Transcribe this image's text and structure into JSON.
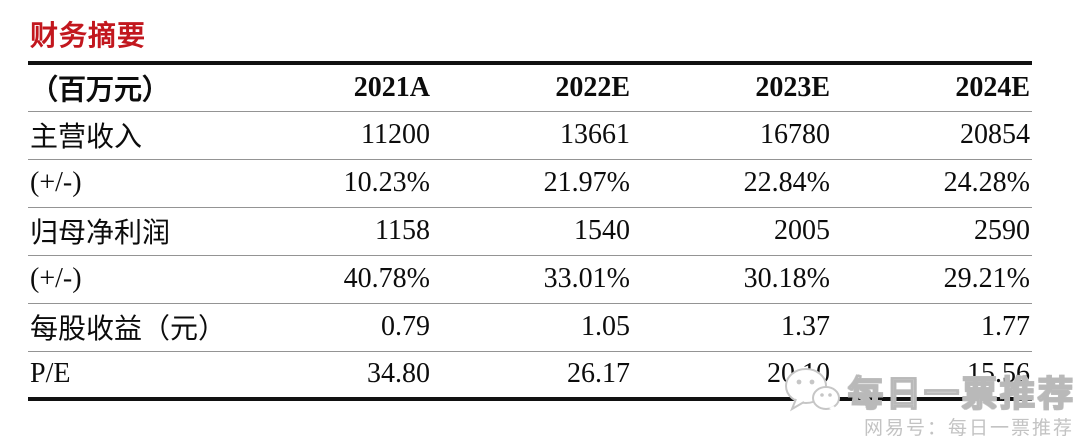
{
  "title": {
    "text": "财务摘要",
    "color": "#c2171e"
  },
  "table": {
    "unit_header": "（百万元）",
    "columns": [
      "2021A",
      "2022E",
      "2023E",
      "2024E"
    ],
    "rows": [
      {
        "label": "主营收入",
        "values": [
          "11200",
          "13661",
          "16780",
          "20854"
        ]
      },
      {
        "label": "(+/-)",
        "values": [
          "10.23%",
          "21.97%",
          "22.84%",
          "24.28%"
        ]
      },
      {
        "label": "归母净利润",
        "values": [
          "1158",
          "1540",
          "2005",
          "2590"
        ]
      },
      {
        "label": "(+/-)",
        "values": [
          "40.78%",
          "33.01%",
          "30.18%",
          "29.21%"
        ]
      },
      {
        "label": "每股收益（元）",
        "values": [
          "0.79",
          "1.05",
          "1.37",
          "1.77"
        ]
      },
      {
        "label": "P/E",
        "values": [
          "34.80",
          "26.17",
          "20.10",
          "15.56"
        ]
      }
    ],
    "line_colors": {
      "thick_border": "#111111",
      "thin_separator": "#949494"
    }
  },
  "watermark": {
    "icon": "wechat-icon",
    "main_text": "每日一票推荐",
    "sub_text": "网易号：每日一票推荐",
    "text_color": "#c3c3c3"
  }
}
